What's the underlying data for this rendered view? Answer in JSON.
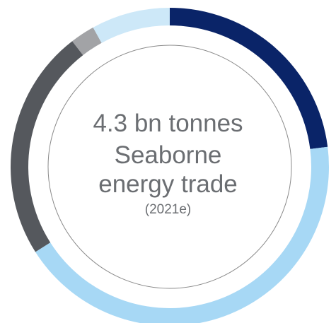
{
  "center": {
    "line1": "4.3 bn tonnes",
    "line2": "Seaborne",
    "line3": "energy trade",
    "line4": "(2021e)"
  },
  "chart_data": {
    "type": "pie",
    "variant": "donut",
    "title": "",
    "slices": [
      {
        "value": 23.0,
        "color": "#0a2468"
      },
      {
        "value": 43.0,
        "color": "#a7d8f5"
      },
      {
        "value": 23.5,
        "color": "#55585d"
      },
      {
        "value": 2.5,
        "color": "#a2a3a6"
      },
      {
        "value": 8.0,
        "color": "#cde8f8"
      }
    ],
    "inner_circle_outline_color": "#8a8a8a"
  }
}
